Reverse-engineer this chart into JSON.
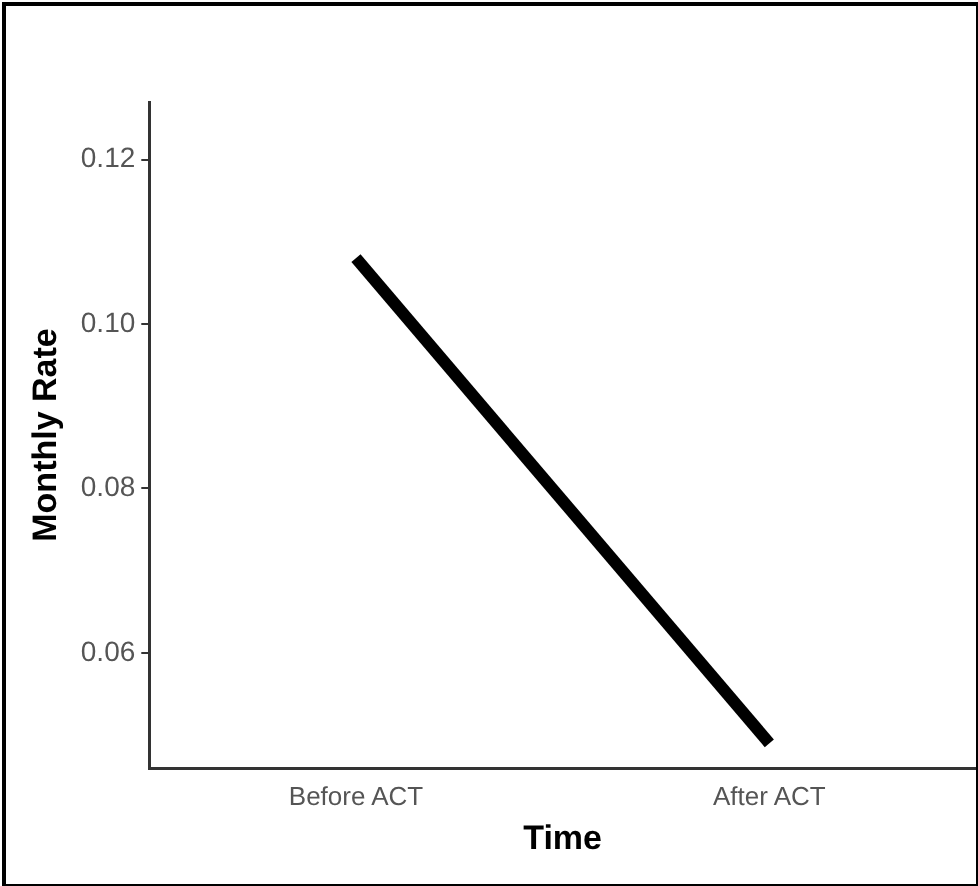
{
  "chart_data": {
    "type": "line",
    "xlabel": "Time",
    "ylabel": "Monthly Rate",
    "categories": [
      "Before ACT",
      "After ACT"
    ],
    "series": [
      {
        "color": "#000000",
        "values": [
          0.108,
          0.049
        ]
      }
    ],
    "ylim": [
      0.046,
      0.127
    ],
    "yticks": [
      {
        "value": 0.06,
        "label": "0.06"
      },
      {
        "value": 0.08,
        "label": "0.08"
      },
      {
        "value": 0.1,
        "label": "0.10"
      },
      {
        "value": 0.12,
        "label": "0.12"
      }
    ],
    "grid": false,
    "legend": false,
    "marker": "none",
    "line_style": "solid"
  }
}
